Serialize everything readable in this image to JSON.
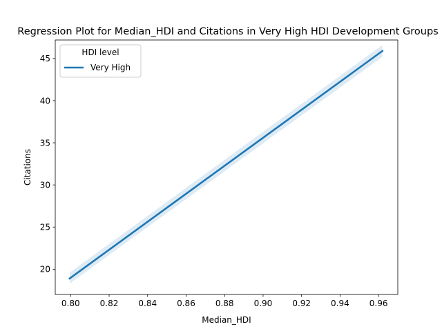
{
  "chart_data": {
    "type": "line",
    "title": "Regression Plot for Median_HDI and Citations in Very High HDI Development Groups",
    "xlabel": "Median_HDI",
    "ylabel": "Citations",
    "xlim": [
      0.792,
      0.97
    ],
    "ylim": [
      17.0,
      47.2
    ],
    "xticks": [
      0.8,
      0.82,
      0.84,
      0.86,
      0.88,
      0.9,
      0.92,
      0.94,
      0.96
    ],
    "xtick_labels": [
      "0.80",
      "0.82",
      "0.84",
      "0.86",
      "0.88",
      "0.90",
      "0.92",
      "0.94",
      "0.96"
    ],
    "yticks": [
      20,
      25,
      30,
      35,
      40,
      45
    ],
    "ytick_labels": [
      "20",
      "25",
      "30",
      "35",
      "40",
      "45"
    ],
    "grid": false,
    "legend": {
      "title": "HDI level",
      "placement": "top-left"
    },
    "series": [
      {
        "name": "Very High",
        "color": "#1f77b4",
        "band_color": "#1f77b4",
        "x": [
          0.7995,
          0.962
        ],
        "y": [
          18.9,
          45.9
        ],
        "ci_lower": [
          18.3,
          45.2
        ],
        "ci_upper": [
          19.6,
          46.6
        ]
      }
    ]
  }
}
